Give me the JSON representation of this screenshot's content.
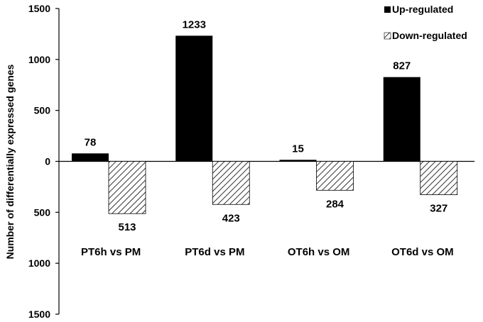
{
  "chart_data": {
    "type": "bar",
    "categories": [
      "PT6h vs PM",
      "PT6d vs PM",
      "OT6h vs OM",
      "OT6d vs OM"
    ],
    "series": [
      {
        "name": "Up-regulated",
        "values": [
          78,
          1233,
          15,
          827
        ],
        "labels": [
          "78",
          "1233",
          "15",
          "827"
        ],
        "color": "#000000",
        "pattern": "solid"
      },
      {
        "name": "Down-regulated",
        "values": [
          -513,
          -423,
          -284,
          -327
        ],
        "labels": [
          "513",
          "423",
          "284",
          "327"
        ],
        "color": "#000000",
        "pattern": "hatched"
      }
    ],
    "ylabel": "Number of differentially expressed genes",
    "ylim": [
      -1500,
      1500
    ],
    "yticks": [
      1500,
      1000,
      500,
      0,
      -500,
      -1000,
      -1500
    ],
    "ytick_labels": [
      "1500",
      "1000",
      "500",
      "0",
      "500",
      "1000",
      "1500"
    ],
    "grid": false,
    "legend_position": "top-right"
  }
}
